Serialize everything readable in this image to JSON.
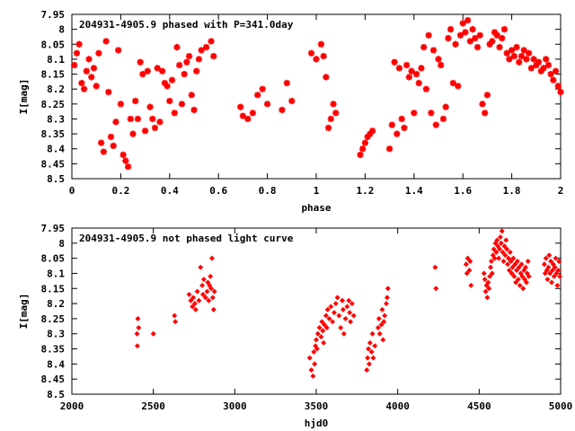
{
  "chart_data": [
    {
      "type": "scatter",
      "title": "204931-4905.9 phased with P=341.0day",
      "xlabel": "phase",
      "ylabel": "I[mag]",
      "xlim": [
        0,
        2
      ],
      "ylim": [
        8.5,
        7.95
      ],
      "y_inverted": true,
      "x_ticks": [
        0,
        0.2,
        0.4,
        0.6,
        0.8,
        1,
        1.2,
        1.4,
        1.6,
        1.8,
        2
      ],
      "x_tick_labels": [
        "0",
        "0.2",
        "0.4",
        "0.6",
        "0.8",
        "1",
        "1.2",
        "1.4",
        "1.6",
        "1.8",
        "2"
      ],
      "y_ticks": [
        7.95,
        8,
        8.05,
        8.1,
        8.15,
        8.2,
        8.25,
        8.3,
        8.35,
        8.4,
        8.45,
        8.5
      ],
      "y_tick_labels": [
        "7.95",
        "8",
        "8.05",
        "8.1",
        "8.15",
        "8.2",
        "8.25",
        "8.3",
        "8.35",
        "8.4",
        "8.45",
        "8.5"
      ],
      "marker": "star",
      "color": "#ff0000",
      "grid": false,
      "points": [
        [
          0.01,
          8.12
        ],
        [
          0.02,
          8.08
        ],
        [
          0.03,
          8.05
        ],
        [
          0.04,
          8.18
        ],
        [
          0.05,
          8.2
        ],
        [
          0.06,
          8.14
        ],
        [
          0.07,
          8.1
        ],
        [
          0.08,
          8.16
        ],
        [
          0.09,
          8.13
        ],
        [
          0.1,
          8.19
        ],
        [
          0.11,
          8.08
        ],
        [
          0.12,
          8.38
        ],
        [
          0.13,
          8.41
        ],
        [
          0.14,
          8.04
        ],
        [
          0.15,
          8.21
        ],
        [
          0.16,
          8.36
        ],
        [
          0.17,
          8.39
        ],
        [
          0.18,
          8.31
        ],
        [
          0.19,
          8.07
        ],
        [
          0.2,
          8.25
        ],
        [
          0.21,
          8.42
        ],
        [
          0.22,
          8.44
        ],
        [
          0.23,
          8.46
        ],
        [
          0.24,
          8.3
        ],
        [
          0.25,
          8.35
        ],
        [
          0.26,
          8.24
        ],
        [
          0.27,
          8.3
        ],
        [
          0.28,
          8.11
        ],
        [
          0.29,
          8.15
        ],
        [
          0.3,
          8.34
        ],
        [
          0.31,
          8.14
        ],
        [
          0.32,
          8.26
        ],
        [
          0.33,
          8.3
        ],
        [
          0.34,
          8.33
        ],
        [
          0.35,
          8.13
        ],
        [
          0.36,
          8.31
        ],
        [
          0.37,
          8.14
        ],
        [
          0.38,
          8.18
        ],
        [
          0.39,
          8.19
        ],
        [
          0.4,
          8.24
        ],
        [
          0.41,
          8.17
        ],
        [
          0.42,
          8.28
        ],
        [
          0.43,
          8.06
        ],
        [
          0.44,
          8.12
        ],
        [
          0.45,
          8.25
        ],
        [
          0.46,
          8.15
        ],
        [
          0.47,
          8.11
        ],
        [
          0.48,
          8.09
        ],
        [
          0.49,
          8.22
        ],
        [
          0.5,
          8.27
        ],
        [
          0.51,
          8.14
        ],
        [
          0.52,
          8.1
        ],
        [
          0.53,
          8.07
        ],
        [
          0.55,
          8.06
        ],
        [
          0.57,
          8.04
        ],
        [
          0.58,
          8.09
        ],
        [
          0.69,
          8.26
        ],
        [
          0.7,
          8.29
        ],
        [
          0.72,
          8.3
        ],
        [
          0.74,
          8.28
        ],
        [
          0.76,
          8.22
        ],
        [
          0.78,
          8.2
        ],
        [
          0.8,
          8.25
        ],
        [
          0.86,
          8.27
        ],
        [
          0.88,
          8.18
        ],
        [
          0.9,
          8.24
        ],
        [
          0.98,
          8.08
        ],
        [
          1.0,
          8.1
        ],
        [
          1.02,
          8.05
        ],
        [
          1.03,
          8.09
        ],
        [
          1.04,
          8.16
        ],
        [
          1.05,
          8.33
        ],
        [
          1.06,
          8.3
        ],
        [
          1.07,
          8.25
        ],
        [
          1.08,
          8.28
        ],
        [
          1.18,
          8.42
        ],
        [
          1.19,
          8.4
        ],
        [
          1.2,
          8.38
        ],
        [
          1.21,
          8.36
        ],
        [
          1.22,
          8.35
        ],
        [
          1.23,
          8.34
        ],
        [
          1.3,
          8.4
        ],
        [
          1.31,
          8.32
        ],
        [
          1.32,
          8.11
        ],
        [
          1.33,
          8.35
        ],
        [
          1.34,
          8.13
        ],
        [
          1.35,
          8.3
        ],
        [
          1.36,
          8.33
        ],
        [
          1.37,
          8.12
        ],
        [
          1.38,
          8.16
        ],
        [
          1.39,
          8.14
        ],
        [
          1.4,
          8.28
        ],
        [
          1.41,
          8.15
        ],
        [
          1.42,
          8.18
        ],
        [
          1.43,
          8.13
        ],
        [
          1.44,
          8.06
        ],
        [
          1.45,
          8.2
        ],
        [
          1.46,
          8.02
        ],
        [
          1.47,
          8.28
        ],
        [
          1.48,
          8.07
        ],
        [
          1.49,
          8.32
        ],
        [
          1.5,
          8.1
        ],
        [
          1.51,
          8.12
        ],
        [
          1.52,
          8.3
        ],
        [
          1.53,
          8.26
        ],
        [
          1.54,
          8.03
        ],
        [
          1.55,
          8.0
        ],
        [
          1.56,
          8.18
        ],
        [
          1.57,
          8.05
        ],
        [
          1.58,
          8.19
        ],
        [
          1.59,
          8.02
        ],
        [
          1.6,
          7.98
        ],
        [
          1.61,
          8.01
        ],
        [
          1.62,
          7.97
        ],
        [
          1.63,
          8.04
        ],
        [
          1.64,
          8.0
        ],
        [
          1.65,
          8.03
        ],
        [
          1.66,
          8.06
        ],
        [
          1.67,
          8.02
        ],
        [
          1.68,
          8.25
        ],
        [
          1.69,
          8.28
        ],
        [
          1.7,
          8.22
        ],
        [
          1.71,
          8.05
        ],
        [
          1.72,
          8.04
        ],
        [
          1.73,
          8.01
        ],
        [
          1.74,
          8.02
        ],
        [
          1.75,
          8.06
        ],
        [
          1.76,
          8.03
        ],
        [
          1.77,
          8.0
        ],
        [
          1.78,
          8.08
        ],
        [
          1.79,
          8.1
        ],
        [
          1.8,
          8.07
        ],
        [
          1.81,
          8.09
        ],
        [
          1.82,
          8.06
        ],
        [
          1.83,
          8.11
        ],
        [
          1.84,
          8.09
        ],
        [
          1.85,
          8.07
        ],
        [
          1.86,
          8.1
        ],
        [
          1.87,
          8.08
        ],
        [
          1.88,
          8.13
        ],
        [
          1.89,
          8.1
        ],
        [
          1.9,
          8.12
        ],
        [
          1.91,
          8.11
        ],
        [
          1.92,
          8.14
        ],
        [
          1.93,
          8.13
        ],
        [
          1.94,
          8.1
        ],
        [
          1.95,
          8.12
        ],
        [
          1.96,
          8.15
        ],
        [
          1.97,
          8.17
        ],
        [
          1.98,
          8.14
        ],
        [
          1.99,
          8.19
        ],
        [
          2.0,
          8.21
        ]
      ]
    },
    {
      "type": "scatter",
      "title": "204931-4905.9 not phased light curve",
      "xlabel": "hjd0",
      "ylabel": "I[mag]",
      "xlim": [
        2000,
        5000
      ],
      "ylim": [
        8.5,
        7.95
      ],
      "y_inverted": true,
      "x_ticks": [
        2000,
        2500,
        3000,
        3500,
        4000,
        4500,
        5000
      ],
      "x_tick_labels": [
        "2000",
        "2500",
        "3000",
        "3500",
        "4000",
        "4500",
        "5000"
      ],
      "y_ticks": [
        7.95,
        8,
        8.05,
        8.1,
        8.15,
        8.2,
        8.25,
        8.3,
        8.35,
        8.4,
        8.45,
        8.5
      ],
      "y_tick_labels": [
        "7.95",
        "8",
        "8.05",
        "8.1",
        "8.15",
        "8.2",
        "8.25",
        "8.3",
        "8.35",
        "8.4",
        "8.45",
        "8.5"
      ],
      "marker": "diamond",
      "color": "#ff0000",
      "grid": false,
      "points": [
        [
          2400,
          8.3
        ],
        [
          2405,
          8.25
        ],
        [
          2410,
          8.28
        ],
        [
          2402,
          8.34
        ],
        [
          2500,
          8.3
        ],
        [
          2630,
          8.24
        ],
        [
          2635,
          8.26
        ],
        [
          2720,
          8.17
        ],
        [
          2730,
          8.19
        ],
        [
          2740,
          8.21
        ],
        [
          2745,
          8.18
        ],
        [
          2755,
          8.2
        ],
        [
          2760,
          8.22
        ],
        [
          2770,
          8.16
        ],
        [
          2780,
          8.19
        ],
        [
          2790,
          8.08
        ],
        [
          2800,
          8.14
        ],
        [
          2805,
          8.17
        ],
        [
          2810,
          8.12
        ],
        [
          2820,
          8.18
        ],
        [
          2830,
          8.16
        ],
        [
          2835,
          8.13
        ],
        [
          2840,
          8.19
        ],
        [
          2845,
          8.14
        ],
        [
          2850,
          8.11
        ],
        [
          2855,
          8.15
        ],
        [
          2860,
          8.05
        ],
        [
          2865,
          8.18
        ],
        [
          2870,
          8.22
        ],
        [
          2875,
          8.16
        ],
        [
          3460,
          8.38
        ],
        [
          3470,
          8.42
        ],
        [
          3480,
          8.44
        ],
        [
          3485,
          8.36
        ],
        [
          3490,
          8.4
        ],
        [
          3495,
          8.34
        ],
        [
          3500,
          8.32
        ],
        [
          3505,
          8.35
        ],
        [
          3510,
          8.3
        ],
        [
          3520,
          8.28
        ],
        [
          3530,
          8.31
        ],
        [
          3535,
          8.26
        ],
        [
          3540,
          8.29
        ],
        [
          3545,
          8.33
        ],
        [
          3550,
          8.27
        ],
        [
          3560,
          8.24
        ],
        [
          3565,
          8.28
        ],
        [
          3570,
          8.22
        ],
        [
          3580,
          8.25
        ],
        [
          3590,
          8.21
        ],
        [
          3600,
          8.26
        ],
        [
          3610,
          8.23
        ],
        [
          3620,
          8.2
        ],
        [
          3630,
          8.18
        ],
        [
          3640,
          8.24
        ],
        [
          3650,
          8.28
        ],
        [
          3660,
          8.19
        ],
        [
          3665,
          8.22
        ],
        [
          3670,
          8.3
        ],
        [
          3680,
          8.25
        ],
        [
          3690,
          8.21
        ],
        [
          3700,
          8.19
        ],
        [
          3705,
          8.23
        ],
        [
          3710,
          8.26
        ],
        [
          3720,
          8.2
        ],
        [
          3730,
          8.24
        ],
        [
          3810,
          8.42
        ],
        [
          3815,
          8.38
        ],
        [
          3820,
          8.35
        ],
        [
          3825,
          8.4
        ],
        [
          3830,
          8.33
        ],
        [
          3840,
          8.36
        ],
        [
          3845,
          8.3
        ],
        [
          3850,
          8.38
        ],
        [
          3860,
          8.34
        ],
        [
          3880,
          8.28
        ],
        [
          3885,
          8.25
        ],
        [
          3890,
          8.3
        ],
        [
          3900,
          8.27
        ],
        [
          3905,
          8.22
        ],
        [
          3910,
          8.32
        ],
        [
          3915,
          8.26
        ],
        [
          3920,
          8.24
        ],
        [
          3930,
          8.2
        ],
        [
          3935,
          8.18
        ],
        [
          3940,
          8.15
        ],
        [
          4230,
          8.08
        ],
        [
          4235,
          8.15
        ],
        [
          4420,
          8.07
        ],
        [
          4425,
          8.1
        ],
        [
          4430,
          8.05
        ],
        [
          4440,
          8.09
        ],
        [
          4445,
          8.06
        ],
        [
          4450,
          8.14
        ],
        [
          4530,
          8.1
        ],
        [
          4535,
          8.12
        ],
        [
          4540,
          8.16
        ],
        [
          4545,
          8.14
        ],
        [
          4550,
          8.18
        ],
        [
          4555,
          8.13
        ],
        [
          4560,
          8.15
        ],
        [
          4565,
          8.11
        ],
        [
          4570,
          8.08
        ],
        [
          4575,
          8.06
        ],
        [
          4580,
          8.1
        ],
        [
          4585,
          8.04
        ],
        [
          4590,
          8.02
        ],
        [
          4595,
          8.05
        ],
        [
          4600,
          8.0
        ],
        [
          4605,
          8.03
        ],
        [
          4610,
          7.99
        ],
        [
          4615,
          8.01
        ],
        [
          4620,
          8.05
        ],
        [
          4625,
          8.02
        ],
        [
          4630,
          7.98
        ],
        [
          4635,
          8.0
        ],
        [
          4640,
          7.96
        ],
        [
          4645,
          8.03
        ],
        [
          4650,
          8.06
        ],
        [
          4655,
          8.01
        ],
        [
          4660,
          8.04
        ],
        [
          4665,
          7.99
        ],
        [
          4670,
          8.02
        ],
        [
          4675,
          8.07
        ],
        [
          4680,
          8.05
        ],
        [
          4685,
          8.09
        ],
        [
          4690,
          8.03
        ],
        [
          4695,
          8.06
        ],
        [
          4700,
          8.1
        ],
        [
          4705,
          8.08
        ],
        [
          4710,
          8.05
        ],
        [
          4715,
          8.11
        ],
        [
          4720,
          8.07
        ],
        [
          4725,
          8.13
        ],
        [
          4730,
          8.09
        ],
        [
          4735,
          8.06
        ],
        [
          4740,
          8.12
        ],
        [
          4745,
          8.08
        ],
        [
          4750,
          8.14
        ],
        [
          4755,
          8.1
        ],
        [
          4760,
          8.07
        ],
        [
          4765,
          8.11
        ],
        [
          4770,
          8.15
        ],
        [
          4775,
          8.09
        ],
        [
          4780,
          8.12
        ],
        [
          4785,
          8.08
        ],
        [
          4790,
          8.13
        ],
        [
          4795,
          8.1
        ],
        [
          4800,
          8.06
        ],
        [
          4805,
          8.11
        ],
        [
          4900,
          8.07
        ],
        [
          4905,
          8.1
        ],
        [
          4910,
          8.05
        ],
        [
          4915,
          8.09
        ],
        [
          4920,
          8.12
        ],
        [
          4925,
          8.08
        ],
        [
          4930,
          8.04
        ],
        [
          4935,
          8.1
        ],
        [
          4940,
          8.06
        ],
        [
          4945,
          8.13
        ],
        [
          4950,
          8.09
        ],
        [
          4955,
          8.07
        ],
        [
          4960,
          8.11
        ],
        [
          4965,
          8.08
        ],
        [
          4970,
          8.05
        ],
        [
          4975,
          8.1
        ],
        [
          4980,
          8.14
        ],
        [
          4985,
          8.09
        ],
        [
          4990,
          8.06
        ],
        [
          4995,
          8.11
        ]
      ]
    }
  ]
}
